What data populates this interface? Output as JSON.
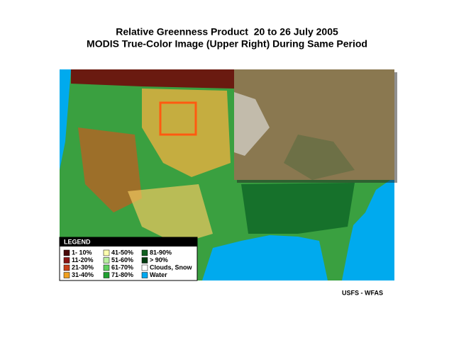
{
  "title": {
    "line1": "Relative Greenness Product  20 to 26 July 2005",
    "line2": "MODIS True-Color Image (Upper Right) During Same Period"
  },
  "legend": {
    "title": "LEGEND",
    "items": [
      {
        "label": "1- 10%",
        "color": "#4a0808"
      },
      {
        "label": "11-20%",
        "color": "#8b1414"
      },
      {
        "label": "21-30%",
        "color": "#c8401a"
      },
      {
        "label": "31-40%",
        "color": "#f0a020"
      },
      {
        "label": "41-50%",
        "color": "#ffffb0"
      },
      {
        "label": "51-60%",
        "color": "#b8f0a0"
      },
      {
        "label": "61-70%",
        "color": "#60d060"
      },
      {
        "label": "71-80%",
        "color": "#20a030"
      },
      {
        "label": "81-90%",
        "color": "#106020"
      },
      {
        "label": "> 90%",
        "color": "#003c10"
      },
      {
        "label": "Clouds, Snow",
        "color": "#ffffff"
      },
      {
        "label": "Water",
        "color": "#00a8f0"
      }
    ]
  },
  "credit": "USFS - WFAS"
}
